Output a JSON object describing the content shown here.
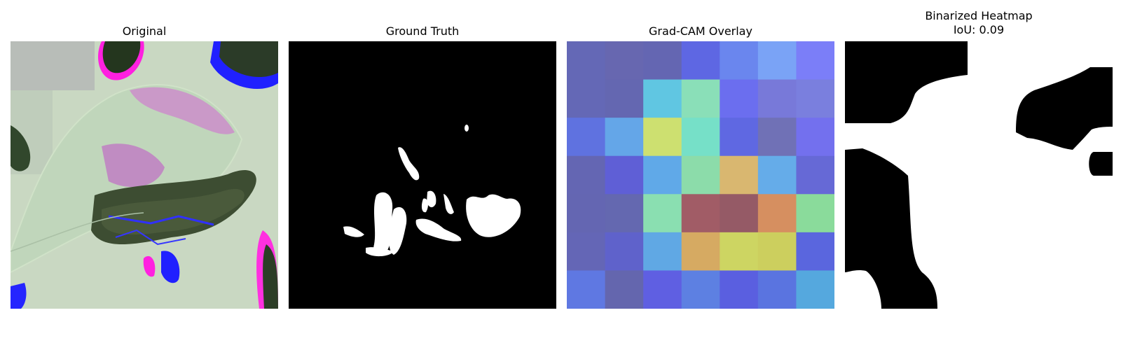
{
  "panels": {
    "original": {
      "title": "Original"
    },
    "ground_truth": {
      "title": "Ground Truth"
    },
    "gradcam": {
      "title": "Grad-CAM Overlay",
      "grid_colors": [
        [
          "#6468b6",
          "#6767b0",
          "#6466b2",
          "#5e67e3",
          "#6a86ee",
          "#7aa3f6",
          "#7b7ef8"
        ],
        [
          "#6468b6",
          "#6467b1",
          "#60c6e2",
          "#8adfb8",
          "#6b6eef",
          "#7879d9",
          "#7a7fde"
        ],
        [
          "#5f72e0",
          "#64a6e8",
          "#cde070",
          "#76e0c8",
          "#5f68e2",
          "#7071b6",
          "#7370ee"
        ],
        [
          "#6466b3",
          "#5f5fd6",
          "#60a9e8",
          "#8cdcaa",
          "#d9b770",
          "#65ace9",
          "#6669d6"
        ],
        [
          "#6466b2",
          "#6468b0",
          "#8adfb1",
          "#a15c66",
          "#955a66",
          "#d68f60",
          "#8adb9b"
        ],
        [
          "#6466b6",
          "#5f62cb",
          "#60a8e4",
          "#d6aa62",
          "#cdd562",
          "#cccf5e",
          "#5a66de"
        ],
        [
          "#5f78e2",
          "#6466ae",
          "#5f5fe2",
          "#5d80e2",
          "#5a5fe0",
          "#5a74e0",
          "#55a8de"
        ]
      ]
    },
    "binarized": {
      "title": "Binarized Heatmap",
      "iou_text": "IoU: 0.09"
    }
  }
}
